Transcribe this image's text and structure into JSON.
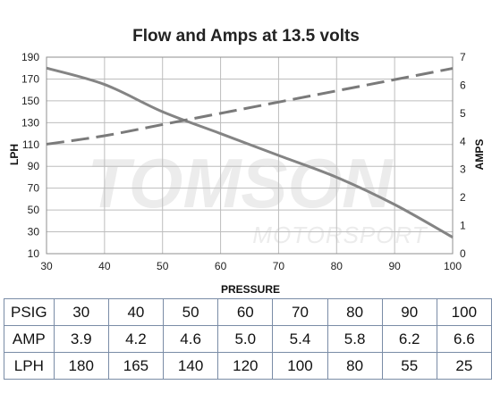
{
  "title": "Flow and Amps at 13.5 volts",
  "watermark": {
    "main": "TOMSON",
    "sub": "MOTORSPORT"
  },
  "chart_data": {
    "type": "line",
    "title": "Flow and Amps at 13.5 volts",
    "xlabel": "PRESSURE",
    "ylabel_left": "LPH",
    "ylabel_right": "AMPS",
    "xlim": [
      30,
      100
    ],
    "ylim_left": [
      10,
      190
    ],
    "ylim_right": [
      0,
      7
    ],
    "x_ticks": [
      30,
      40,
      50,
      60,
      70,
      80,
      90,
      100
    ],
    "y_left_ticks": [
      10,
      30,
      50,
      70,
      90,
      110,
      130,
      150,
      170,
      190
    ],
    "y_right_ticks": [
      0,
      1,
      2,
      3,
      4,
      5,
      6,
      7
    ],
    "grid": true,
    "x": [
      30,
      40,
      50,
      60,
      70,
      80,
      90,
      100
    ],
    "series": [
      {
        "name": "LPH",
        "axis": "left",
        "style": "solid",
        "color": "#848484",
        "values": [
          180,
          165,
          140,
          120,
          100,
          80,
          55,
          25
        ]
      },
      {
        "name": "AMP",
        "axis": "right",
        "style": "dashed",
        "color": "#7a7a7a",
        "values": [
          3.9,
          4.2,
          4.6,
          5.0,
          5.4,
          5.8,
          6.2,
          6.6
        ]
      }
    ]
  },
  "table": {
    "rows": [
      {
        "label": "PSIG",
        "values": [
          "30",
          "40",
          "50",
          "60",
          "70",
          "80",
          "90",
          "100"
        ]
      },
      {
        "label": "AMP",
        "values": [
          "3.9",
          "4.2",
          "4.6",
          "5.0",
          "5.4",
          "5.8",
          "6.2",
          "6.6"
        ]
      },
      {
        "label": "LPH",
        "values": [
          "180",
          "165",
          "140",
          "120",
          "100",
          "80",
          "55",
          "25"
        ]
      }
    ]
  }
}
